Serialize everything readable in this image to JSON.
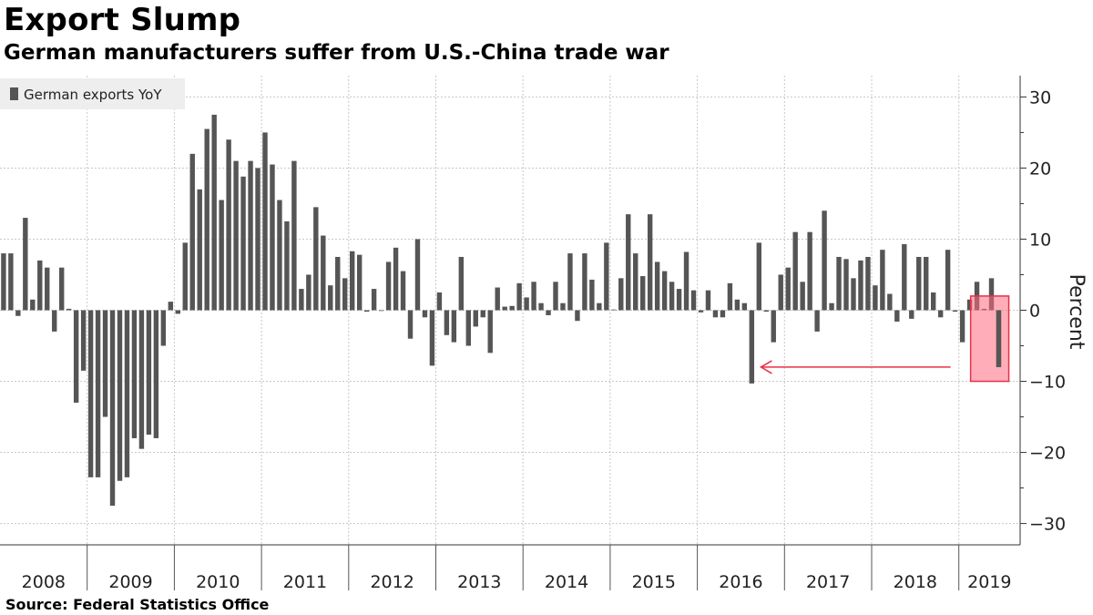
{
  "title": "Export Slump",
  "subtitle": "German manufacturers suffer from U.S.-China trade war",
  "source": "Source:  Federal Statistics Office",
  "chart_data": {
    "type": "bar",
    "ylabel": "Percent",
    "ylim": [
      -33,
      33
    ],
    "yticks": [
      30,
      20,
      10,
      0,
      -10,
      -20,
      -30
    ],
    "grid": true,
    "legend": "top-left",
    "bar_color": "#555555",
    "highlight_color": "#ff6b7f",
    "years": [
      "2008",
      "2009",
      "2010",
      "2011",
      "2012",
      "2013",
      "2014",
      "2015",
      "2016",
      "2017",
      "2018",
      "2019"
    ],
    "series": [
      {
        "name": "German exports YoY",
        "values": [
          8,
          8,
          -0.8,
          13,
          1.5,
          7,
          6,
          -3,
          6,
          0.2,
          -13,
          -8.5,
          -23.5,
          -23.5,
          -15,
          -27.5,
          -24,
          -23.5,
          -18,
          -19.5,
          -17.5,
          -18,
          -5,
          1.2,
          -0.5,
          9.5,
          22,
          17,
          25.5,
          27.5,
          15.5,
          24,
          21,
          18.8,
          21,
          20,
          25,
          20.5,
          15.5,
          12.5,
          21,
          3,
          5,
          14.5,
          10.5,
          3.5,
          7.5,
          4.5,
          8.3,
          7.8,
          -0.2,
          3,
          0,
          6.8,
          8.8,
          5.5,
          -4,
          10,
          -1,
          -7.8,
          2.5,
          -3.5,
          -4.5,
          7.5,
          -5,
          -2.3,
          -1,
          -6,
          3.2,
          0.5,
          0.6,
          3.8,
          1.8,
          4,
          1,
          -0.7,
          4,
          1,
          8,
          -1.5,
          8,
          4.3,
          1,
          9.5,
          0.1,
          4.5,
          13.5,
          8,
          4.8,
          13.5,
          6.8,
          5.5,
          4,
          3,
          8.2,
          2.8,
          -0.3,
          2.8,
          -1,
          -1,
          3.8,
          1.5,
          1,
          -10.3,
          9.5,
          -0.2,
          -4.5,
          5,
          6,
          11,
          4,
          11,
          -3,
          14,
          1,
          7.5,
          7.2,
          4.5,
          7,
          7.5,
          3.5,
          8.5,
          2.3,
          -1.6,
          9.3,
          -1.2,
          7.5,
          7.5,
          2.5,
          -1,
          8.5,
          -0.2,
          -4.5,
          1.5,
          4,
          0.2,
          4.5,
          -8
        ]
      }
    ],
    "annotation": {
      "highlight_range": [
        -10,
        2
      ]
    }
  }
}
